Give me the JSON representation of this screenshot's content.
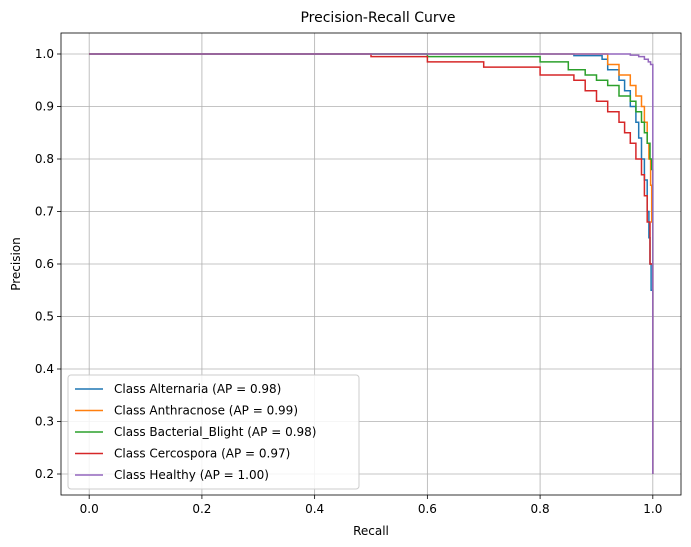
{
  "chart_data": {
    "type": "line",
    "title": "Precision-Recall Curve",
    "xlabel": "Recall",
    "ylabel": "Precision",
    "xlim": [
      -0.05,
      1.05
    ],
    "ylim": [
      0.16,
      1.04
    ],
    "xticks": [
      0.0,
      0.2,
      0.4,
      0.6,
      0.8,
      1.0
    ],
    "xtick_labels": [
      "0.0",
      "0.2",
      "0.4",
      "0.6",
      "0.8",
      "1.0"
    ],
    "yticks": [
      0.2,
      0.3,
      0.4,
      0.5,
      0.6,
      0.7,
      0.8,
      0.9,
      1.0
    ],
    "ytick_labels": [
      "0.2",
      "0.3",
      "0.4",
      "0.5",
      "0.6",
      "0.7",
      "0.8",
      "0.9",
      "1.0"
    ],
    "grid": true,
    "legend_position": "lower-left",
    "series": [
      {
        "name": "Class Alternaria (AP = 0.98)",
        "color": "#1f77b4",
        "x": [
          0.0,
          0.74,
          0.86,
          0.91,
          0.92,
          0.94,
          0.95,
          0.96,
          0.97,
          0.975,
          0.98,
          0.985,
          0.99,
          0.993,
          0.995,
          0.997,
          1.0,
          1.0
        ],
        "y": [
          1.0,
          1.0,
          0.997,
          0.99,
          0.97,
          0.95,
          0.93,
          0.9,
          0.87,
          0.84,
          0.8,
          0.76,
          0.7,
          0.65,
          0.6,
          0.55,
          0.48,
          0.2
        ]
      },
      {
        "name": "Class Anthracnose (AP = 0.99)",
        "color": "#ff7f0e",
        "x": [
          0.0,
          0.88,
          0.92,
          0.94,
          0.96,
          0.97,
          0.98,
          0.985,
          0.99,
          0.993,
          0.996,
          0.998,
          1.0,
          1.0
        ],
        "y": [
          1.0,
          1.0,
          0.98,
          0.96,
          0.94,
          0.92,
          0.9,
          0.87,
          0.83,
          0.8,
          0.75,
          0.68,
          0.62,
          0.2
        ]
      },
      {
        "name": "Class Bacterial_Blight (AP = 0.98)",
        "color": "#2ca02c",
        "x": [
          0.0,
          0.6,
          0.8,
          0.85,
          0.88,
          0.9,
          0.92,
          0.94,
          0.96,
          0.97,
          0.98,
          0.985,
          0.99,
          0.995,
          0.998,
          1.0,
          1.0
        ],
        "y": [
          1.0,
          0.995,
          0.985,
          0.97,
          0.96,
          0.95,
          0.94,
          0.92,
          0.91,
          0.89,
          0.87,
          0.85,
          0.83,
          0.8,
          0.78,
          0.67,
          0.2
        ]
      },
      {
        "name": "Class Cercospora (AP = 0.97)",
        "color": "#d62728",
        "x": [
          0.0,
          0.5,
          0.6,
          0.7,
          0.8,
          0.86,
          0.88,
          0.9,
          0.92,
          0.94,
          0.95,
          0.96,
          0.97,
          0.98,
          0.985,
          0.99,
          0.995,
          1.0,
          1.0
        ],
        "y": [
          1.0,
          0.995,
          0.985,
          0.975,
          0.96,
          0.95,
          0.93,
          0.91,
          0.89,
          0.87,
          0.85,
          0.83,
          0.8,
          0.77,
          0.73,
          0.68,
          0.6,
          0.41,
          0.2
        ]
      },
      {
        "name": "Class Healthy (AP = 1.00)",
        "color": "#9467bd",
        "x": [
          0.0,
          0.93,
          0.96,
          0.975,
          0.985,
          0.992,
          0.996,
          1.0,
          1.0
        ],
        "y": [
          1.0,
          1.0,
          0.998,
          0.995,
          0.99,
          0.985,
          0.98,
          0.97,
          0.2
        ]
      }
    ]
  }
}
